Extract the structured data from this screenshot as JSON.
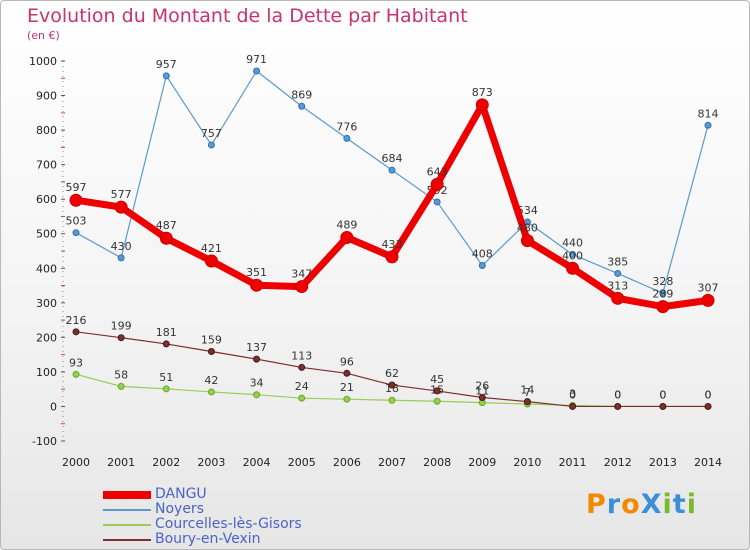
{
  "title": "Evolution du Montant de la Dette par Habitant",
  "subtitle": "(en €)",
  "logo_text": "ProXiti",
  "chart_data": {
    "type": "line",
    "title": "Evolution du Montant de la Dette par Habitant",
    "subtitle": "(en €)",
    "xlabel": "",
    "ylabel": "",
    "ylim": [
      -100,
      1000
    ],
    "y_ticks": [
      -100,
      0,
      100,
      200,
      300,
      400,
      500,
      600,
      700,
      800,
      900,
      1000
    ],
    "x": [
      "2000",
      "2001",
      "2002",
      "2003",
      "2004",
      "2005",
      "2006",
      "2007",
      "2008",
      "2009",
      "2010",
      "2011",
      "2012",
      "2013",
      "2014"
    ],
    "grid": "dotted y-axis minor ticks only",
    "legend_position": "bottom-left",
    "series": [
      {
        "name": "DANGU",
        "color": "#ee0000",
        "values": [
          597,
          577,
          487,
          421,
          351,
          347,
          489,
          433,
          643,
          873,
          480,
          400,
          313,
          289,
          307
        ]
      },
      {
        "name": "Noyers",
        "color": "#5a9ad0",
        "values": [
          503,
          430,
          957,
          757,
          971,
          869,
          776,
          684,
          592,
          408,
          534,
          440,
          385,
          328,
          814
        ]
      },
      {
        "name": "Courcelles-lès-Gisors",
        "color": "#99cc55",
        "values": [
          93,
          58,
          51,
          42,
          34,
          24,
          21,
          18,
          15,
          11,
          7,
          3,
          0,
          0,
          0
        ]
      },
      {
        "name": "Boury-en-Vexin",
        "color": "#7b2f2f",
        "values": [
          216,
          199,
          181,
          159,
          137,
          113,
          96,
          62,
          45,
          26,
          14,
          0,
          0,
          0,
          0
        ]
      }
    ]
  }
}
